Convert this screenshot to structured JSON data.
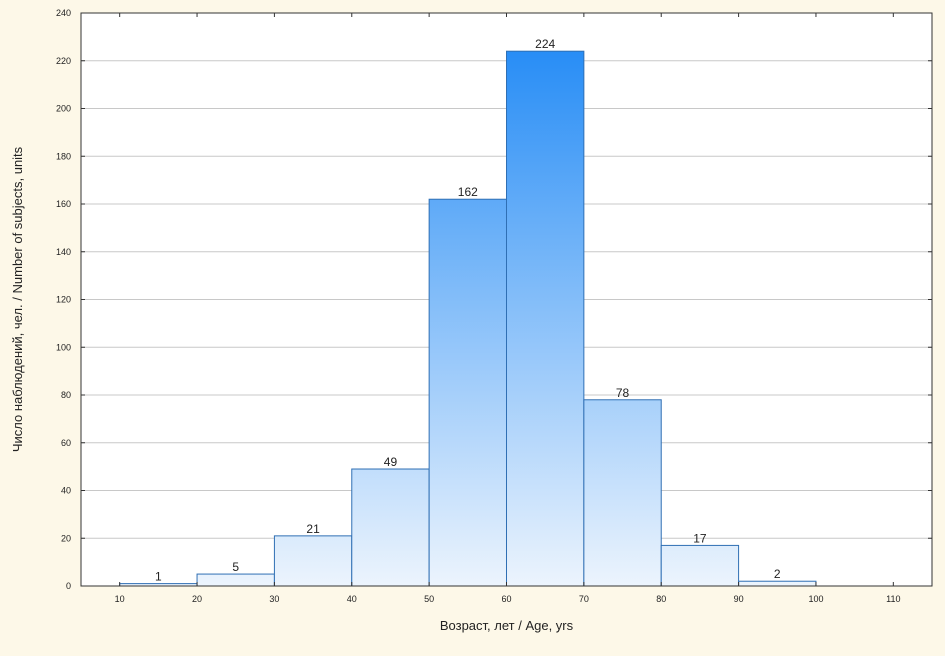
{
  "chart_data": {
    "type": "bar",
    "subtype": "histogram",
    "bins": [
      {
        "from": 10,
        "to": 20,
        "count": 1
      },
      {
        "from": 20,
        "to": 30,
        "count": 5
      },
      {
        "from": 30,
        "to": 40,
        "count": 21
      },
      {
        "from": 40,
        "to": 50,
        "count": 49
      },
      {
        "from": 50,
        "to": 60,
        "count": 162
      },
      {
        "from": 60,
        "to": 70,
        "count": 224
      },
      {
        "from": 70,
        "to": 80,
        "count": 78
      },
      {
        "from": 80,
        "to": 90,
        "count": 17
      },
      {
        "from": 90,
        "to": 100,
        "count": 2
      }
    ],
    "xlabel": "Возраст, лет / Age, yrs",
    "ylabel": "Число наблюдений, чел. / Number of subjects, units",
    "xlim": [
      5,
      115
    ],
    "ylim": [
      0,
      240
    ],
    "xticks": [
      10,
      20,
      30,
      40,
      50,
      60,
      70,
      80,
      90,
      100,
      110
    ],
    "yticks": [
      0,
      20,
      40,
      60,
      80,
      100,
      120,
      140,
      160,
      180,
      200,
      220,
      240
    ],
    "grid": true,
    "colors": {
      "bar_top": "#1a86f5",
      "bar_bottom": "#ecf4fd",
      "bar_stroke": "#2f6fb4",
      "background": "#fdf8e8",
      "plot_background": "#ffffff",
      "grid": "#c8c8c8"
    }
  }
}
